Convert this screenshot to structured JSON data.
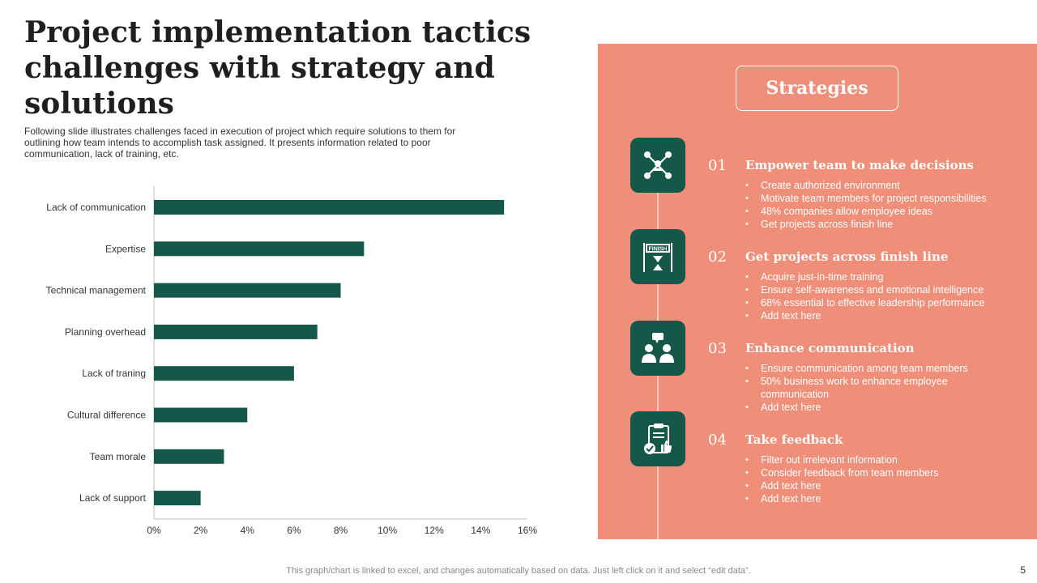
{
  "slide": {
    "title": "Project implementation tactics challenges with strategy and solutions",
    "subtitle": "Following slide illustrates challenges faced in execution of project which require solutions to them for outlining how team intends to accomplish task assigned. It presents information related to poor communication, lack of training, etc.",
    "footnote": "This graph/chart is linked to excel, and changes automatically based on data. Just left click on it and select “edit data”.",
    "page_number": "5"
  },
  "chart_data": {
    "type": "bar",
    "orientation": "horizontal",
    "categories": [
      "Lack of communication",
      "Expertise",
      "Technical management",
      "Planning overhead",
      "Lack of traning",
      "Cultural difference",
      "Team morale",
      "Lack of support"
    ],
    "values": [
      15,
      9,
      8,
      7,
      6,
      4,
      3,
      2
    ],
    "xlim": [
      0,
      16
    ],
    "x_ticks": [
      "0%",
      "2%",
      "4%",
      "6%",
      "8%",
      "10%",
      "12%",
      "14%",
      "16%"
    ],
    "grid": false,
    "bar_color": "#15584a"
  },
  "panel": {
    "heading": "Strategies",
    "background": "#ef8f7a",
    "accent": "#15584a",
    "items": [
      {
        "number": "01",
        "title": "Empower team to make decisions",
        "icon": "network-people-icon",
        "bullets": [
          "Create authorized environment",
          "Motivate team members for project responsibilities",
          "48% companies allow employee ideas",
          "Get projects across finish line"
        ]
      },
      {
        "number": "02",
        "title": "Get projects across finish line",
        "icon": "finish-line-icon",
        "icon_text": "FINISH",
        "bullets": [
          "Acquire just-in-time training",
          "Ensure self-awareness and emotional intelligence",
          "68% essential to effective leadership performance",
          "Add text here"
        ]
      },
      {
        "number": "03",
        "title": "Enhance communication",
        "icon": "conversation-icon",
        "bullets": [
          "Ensure communication among team members",
          "50% business work to enhance employee communication",
          "Add text here"
        ]
      },
      {
        "number": "04",
        "title": "Take feedback",
        "icon": "feedback-clipboard-icon",
        "bullets": [
          "Filter out irrelevant information",
          "Consider feedback from team members",
          "Add text here",
          "Add text here"
        ]
      }
    ]
  }
}
